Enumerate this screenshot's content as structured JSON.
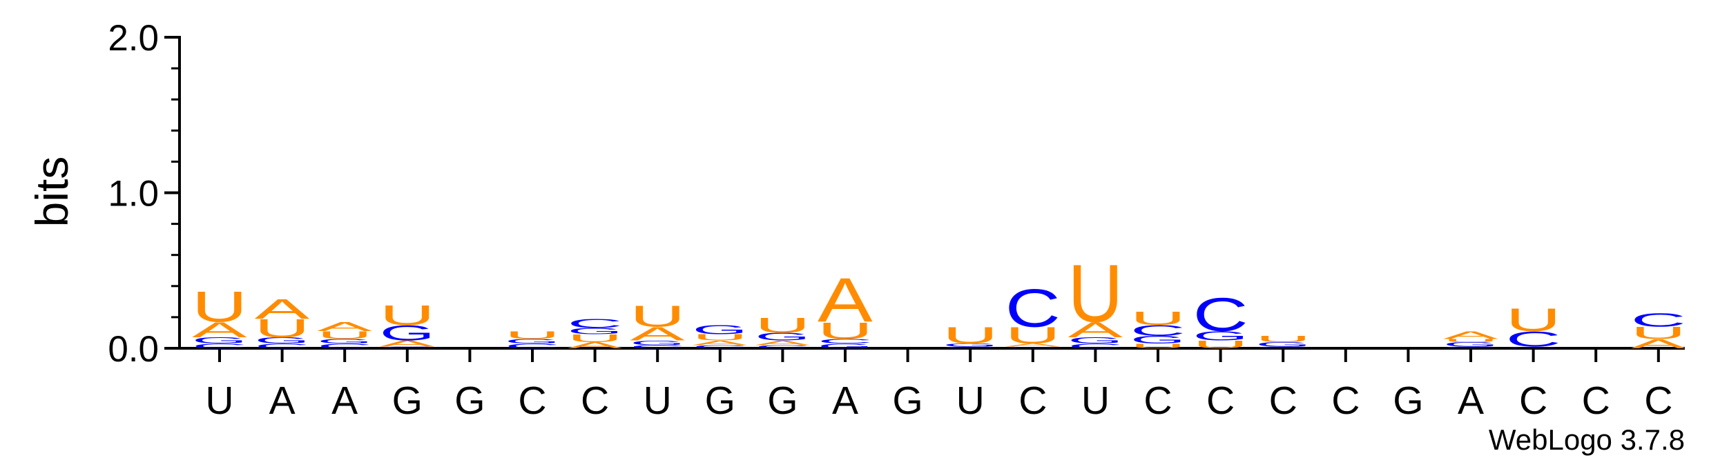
{
  "chart_data": {
    "type": "sequence-logo",
    "ylabel": "bits",
    "ylim": [
      0,
      2.0
    ],
    "yticks": [
      "0.0",
      "1.0",
      "2.0"
    ],
    "credit": "WebLogo 3.7.8",
    "colors": {
      "A": "#ff8c00",
      "U": "#ff8c00",
      "C": "#0000ff",
      "G": "#0000ff"
    },
    "positions": [
      {
        "label": "U",
        "stack": [
          {
            "l": "C",
            "h": 0.03
          },
          {
            "l": "G",
            "h": 0.04
          },
          {
            "l": "A",
            "h": 0.1
          },
          {
            "l": "U",
            "h": 0.2
          }
        ]
      },
      {
        "label": "A",
        "stack": [
          {
            "l": "C",
            "h": 0.03
          },
          {
            "l": "G",
            "h": 0.04
          },
          {
            "l": "U",
            "h": 0.12
          },
          {
            "l": "A",
            "h": 0.13
          }
        ]
      },
      {
        "label": "A",
        "stack": [
          {
            "l": "C",
            "h": 0.03
          },
          {
            "l": "G",
            "h": 0.03
          },
          {
            "l": "U",
            "h": 0.05
          },
          {
            "l": "A",
            "h": 0.06
          }
        ]
      },
      {
        "label": "G",
        "stack": [
          {
            "l": "C",
            "h": 0.01
          },
          {
            "l": "A",
            "h": 0.04
          },
          {
            "l": "G",
            "h": 0.1
          },
          {
            "l": "U",
            "h": 0.13
          }
        ]
      },
      {
        "label": "G",
        "stack": []
      },
      {
        "label": "C",
        "stack": [
          {
            "l": "C",
            "h": 0.03
          },
          {
            "l": "G",
            "h": 0.03
          },
          {
            "l": "U",
            "h": 0.05
          }
        ]
      },
      {
        "label": "C",
        "stack": [
          {
            "l": "A",
            "h": 0.04
          },
          {
            "l": "U",
            "h": 0.05
          },
          {
            "l": "G",
            "h": 0.04
          },
          {
            "l": "C",
            "h": 0.06
          }
        ]
      },
      {
        "label": "U",
        "stack": [
          {
            "l": "C",
            "h": 0.02
          },
          {
            "l": "G",
            "h": 0.03
          },
          {
            "l": "A",
            "h": 0.09
          },
          {
            "l": "U",
            "h": 0.14
          }
        ]
      },
      {
        "label": "G",
        "stack": [
          {
            "l": "C",
            "h": 0.02
          },
          {
            "l": "A",
            "h": 0.03
          },
          {
            "l": "U",
            "h": 0.04
          },
          {
            "l": "G",
            "h": 0.06
          }
        ]
      },
      {
        "label": "G",
        "stack": [
          {
            "l": "C",
            "h": 0.02
          },
          {
            "l": "A",
            "h": 0.03
          },
          {
            "l": "G",
            "h": 0.05
          },
          {
            "l": "U",
            "h": 0.1
          }
        ]
      },
      {
        "label": "A",
        "stack": [
          {
            "l": "G",
            "h": 0.03
          },
          {
            "l": "C",
            "h": 0.03
          },
          {
            "l": "U",
            "h": 0.11
          },
          {
            "l": "A",
            "h": 0.29
          }
        ]
      },
      {
        "label": "G",
        "stack": []
      },
      {
        "label": "U",
        "stack": [
          {
            "l": "C",
            "h": 0.01
          },
          {
            "l": "G",
            "h": 0.02
          },
          {
            "l": "U",
            "h": 0.11
          }
        ]
      },
      {
        "label": "C",
        "stack": [
          {
            "l": "G",
            "h": 0.01
          },
          {
            "l": "A",
            "h": 0.02
          },
          {
            "l": "U",
            "h": 0.11
          },
          {
            "l": "C",
            "h": 0.25
          }
        ]
      },
      {
        "label": "U",
        "stack": [
          {
            "l": "C",
            "h": 0.03
          },
          {
            "l": "G",
            "h": 0.04
          },
          {
            "l": "A",
            "h": 0.1
          },
          {
            "l": "U",
            "h": 0.38
          }
        ]
      },
      {
        "label": "C",
        "stack": [
          {
            "l": "U",
            "h": 0.03
          },
          {
            "l": "G",
            "h": 0.05
          },
          {
            "l": "C",
            "h": 0.07
          },
          {
            "l": "U",
            "h": 0.09
          }
        ]
      },
      {
        "label": "C",
        "stack": [
          {
            "l": "U",
            "h": 0.05
          },
          {
            "l": "G",
            "h": 0.06
          },
          {
            "l": "C",
            "h": 0.22
          }
        ]
      },
      {
        "label": "C",
        "stack": [
          {
            "l": "C",
            "h": 0.01
          },
          {
            "l": "G",
            "h": 0.03
          },
          {
            "l": "U",
            "h": 0.04
          }
        ]
      },
      {
        "label": "C",
        "stack": []
      },
      {
        "label": "G",
        "stack": []
      },
      {
        "label": "A",
        "stack": [
          {
            "l": "C",
            "h": 0.01
          },
          {
            "l": "G",
            "h": 0.03
          },
          {
            "l": "U",
            "h": 0.02
          },
          {
            "l": "A",
            "h": 0.05
          }
        ]
      },
      {
        "label": "C",
        "stack": [
          {
            "l": "G",
            "h": 0.01
          },
          {
            "l": "C",
            "h": 0.1
          },
          {
            "l": "U",
            "h": 0.15
          }
        ]
      },
      {
        "label": "C",
        "stack": []
      },
      {
        "label": "C",
        "stack": [
          {
            "l": "A",
            "h": 0.06
          },
          {
            "l": "U",
            "h": 0.08
          },
          {
            "l": "C",
            "h": 0.09
          }
        ]
      }
    ]
  }
}
